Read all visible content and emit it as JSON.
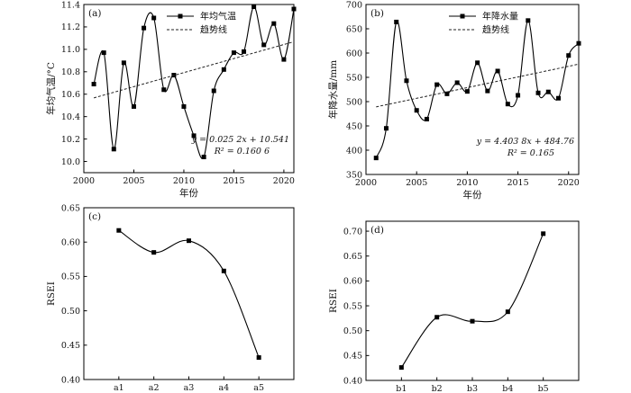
{
  "chart_data": [
    {
      "id": "a",
      "panel_label": "(a)",
      "type": "line",
      "xlabel": "年份",
      "ylabel": "年均气温/°C",
      "xlim": [
        2000,
        2021
      ],
      "ylim": [
        9.9,
        11.4
      ],
      "xticks": [
        2000,
        2005,
        2010,
        2015,
        2020
      ],
      "yticks": [
        "10.0",
        "10.2",
        "10.4",
        "10.6",
        "10.8",
        "11.0",
        "11.2",
        "11.4"
      ],
      "legend_position": "top-center",
      "series": [
        {
          "name": "年均气温",
          "style": "smooth-line-square-markers",
          "x": [
            2001,
            2002,
            2003,
            2004,
            2005,
            2006,
            2007,
            2008,
            2009,
            2010,
            2011,
            2012,
            2013,
            2014,
            2015,
            2016,
            2017,
            2018,
            2019,
            2020,
            2021
          ],
          "y": [
            10.69,
            10.97,
            10.11,
            10.88,
            10.49,
            11.19,
            11.28,
            10.64,
            10.77,
            10.49,
            10.23,
            10.04,
            10.63,
            10.82,
            10.97,
            10.98,
            11.38,
            11.04,
            11.23,
            10.91,
            11.36
          ]
        },
        {
          "name": "趋势线",
          "style": "dashed",
          "x": [
            2001,
            2021
          ],
          "y": [
            10.567,
            11.068
          ]
        }
      ],
      "annotations": [
        "y = 0.025 2x + 10.541",
        "R² = 0.160 6"
      ]
    },
    {
      "id": "b",
      "panel_label": "(b)",
      "type": "line",
      "xlabel": "年份",
      "ylabel": "年降水量/mm",
      "xlim": [
        2000,
        2021
      ],
      "ylim": [
        350,
        700
      ],
      "xticks": [
        2000,
        2005,
        2010,
        2015,
        2020
      ],
      "yticks": [
        "350",
        "400",
        "450",
        "500",
        "550",
        "600",
        "650",
        "700"
      ],
      "legend_position": "top-center",
      "series": [
        {
          "name": "年降水量",
          "style": "smooth-line-square-markers",
          "x": [
            2001,
            2002,
            2003,
            2004,
            2005,
            2006,
            2007,
            2008,
            2009,
            2010,
            2011,
            2012,
            2013,
            2014,
            2015,
            2016,
            2017,
            2018,
            2019,
            2020,
            2021
          ],
          "y": [
            384,
            445,
            664,
            543,
            482,
            464,
            535,
            516,
            539,
            521,
            580,
            522,
            563,
            495,
            513,
            667,
            518,
            520,
            507,
            595,
            620
          ]
        },
        {
          "name": "趋势线",
          "style": "dashed",
          "x": [
            2001,
            2021
          ],
          "y": [
            489.2,
            577.2
          ]
        }
      ],
      "annotations": [
        "y = 4.403 8x + 484.76",
        "R² = 0.165"
      ]
    },
    {
      "id": "c",
      "panel_label": "(c)",
      "type": "line",
      "xlabel": "",
      "ylabel": "RSEI",
      "categories": [
        "a1",
        "a2",
        "a3",
        "a4",
        "a5"
      ],
      "ylim": [
        0.4,
        0.65
      ],
      "yticks": [
        "0.40",
        "0.45",
        "0.50",
        "0.55",
        "0.60",
        "0.65"
      ],
      "series": [
        {
          "style": "smooth-line-square-markers",
          "values": [
            0.617,
            0.585,
            0.602,
            0.558,
            0.432
          ]
        }
      ]
    },
    {
      "id": "d",
      "panel_label": "(d)",
      "type": "line",
      "xlabel": "",
      "ylabel": "RSEI",
      "categories": [
        "b1",
        "b2",
        "b3",
        "b4",
        "b5"
      ],
      "ylim": [
        0.4,
        0.72
      ],
      "yticks": [
        "0.40",
        "0.45",
        "0.50",
        "0.55",
        "0.60",
        "0.65",
        "0.70"
      ],
      "series": [
        {
          "style": "smooth-line-square-markers",
          "values": [
            0.426,
            0.527,
            0.519,
            0.538,
            0.695
          ]
        }
      ]
    }
  ]
}
